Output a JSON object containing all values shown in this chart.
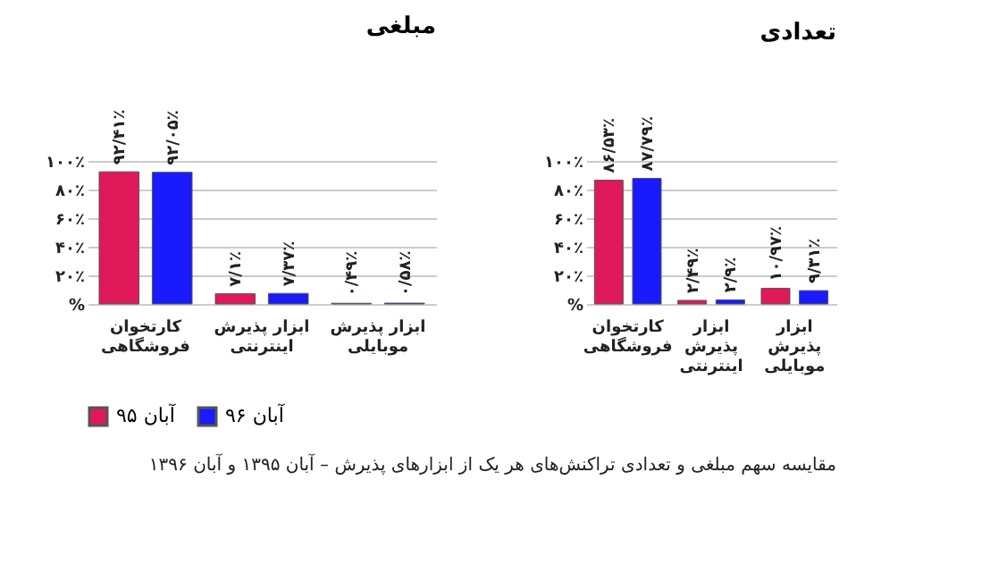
{
  "chart_data": [
    {
      "type": "bar",
      "title": "مبلغی",
      "categories": [
        "کارتخوان فروشگاهی",
        "ابزار پذیرش اینترنتی",
        "ابزار پذیرش موبایلی"
      ],
      "series": [
        {
          "name": "آبان ۹۵",
          "color": "#e0195a",
          "values": [
            92.41,
            7.1,
            0.49
          ],
          "value_labels": [
            "۹۲/۴۱٪",
            "۷/۱٪",
            "۰/۴۹٪"
          ]
        },
        {
          "name": "آبان ۹۶",
          "color": "#1a1aff",
          "values": [
            92.05,
            7.37,
            0.58
          ],
          "value_labels": [
            "۹۲/۰۵٪",
            "۷/۳۷٪",
            "۰/۵۸٪"
          ]
        }
      ],
      "ylim": [
        0,
        100
      ],
      "yticks": [
        {
          "value": 0,
          "label": "%"
        },
        {
          "value": 20,
          "label": "۲۰٪"
        },
        {
          "value": 40,
          "label": "۴۰٪"
        },
        {
          "value": 60,
          "label": "۶۰٪"
        },
        {
          "value": 80,
          "label": "۸۰٪"
        },
        {
          "value": 100,
          "label": "۱۰۰٪"
        }
      ],
      "grid": "y",
      "legend": "bottom",
      "annotations": [
        "مقایسه سهم مبلغی و تعدادی تراکنش‌های هر یک از ابزارهای پذیرش – آبان ۱۳۹۵ و آبان ۱۳۹۶"
      ]
    },
    {
      "type": "bar",
      "title": "تعدادی",
      "categories": [
        "کارتخوان فروشگاهی",
        "ابزار پذیرش اینترنتی",
        "ابزار پذیرش موبایلی"
      ],
      "series": [
        {
          "name": "آبان ۹۵",
          "color": "#e0195a",
          "values": [
            86.53,
            2.49,
            10.97
          ],
          "value_labels": [
            "۸۶/۵۳٪",
            "۲/۴۹٪",
            "۱۰/۹۷٪"
          ]
        },
        {
          "name": "آبان ۹۶",
          "color": "#1a1aff",
          "values": [
            87.79,
            2.9,
            9.31
          ],
          "value_labels": [
            "۸۷/۷۹٪",
            "۲/۹٪",
            "۹/۳۱٪"
          ]
        }
      ],
      "ylim": [
        0,
        100
      ],
      "yticks": [
        {
          "value": 0,
          "label": "%"
        },
        {
          "value": 20,
          "label": "۲۰٪"
        },
        {
          "value": 40,
          "label": "۴۰٪"
        },
        {
          "value": 60,
          "label": "۶۰٪"
        },
        {
          "value": 80,
          "label": "۸۰٪"
        },
        {
          "value": 100,
          "label": "۱۰۰٪"
        }
      ],
      "grid": "y",
      "legend": "bottom"
    }
  ]
}
